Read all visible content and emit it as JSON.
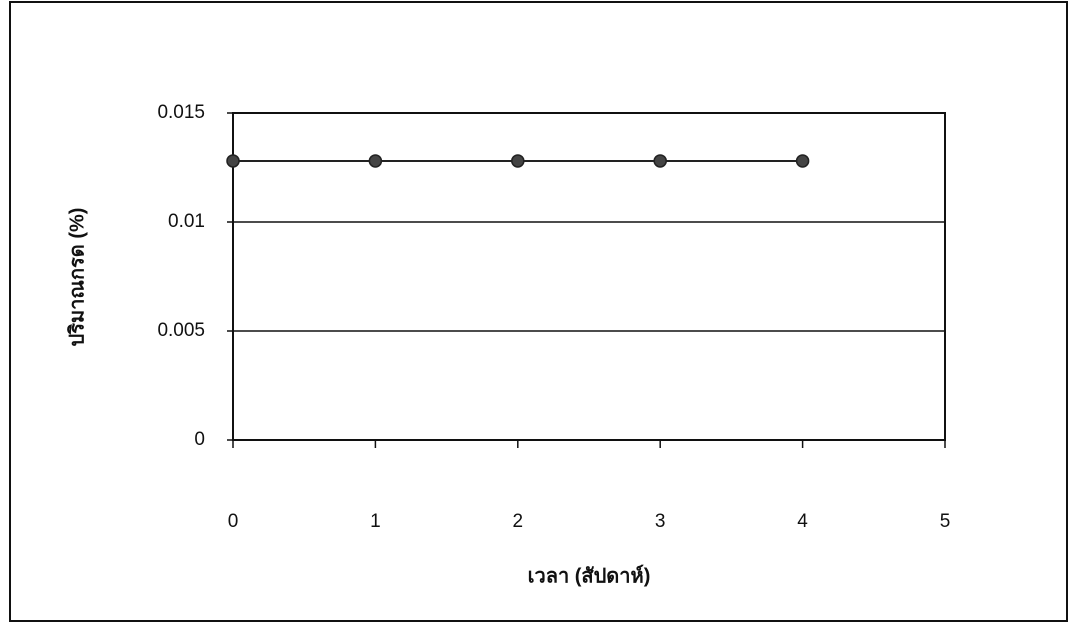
{
  "chart_data": {
    "type": "line",
    "x_label": "เวลา (สัปดาห์)",
    "y_label": "ปริมาณกรด (%)",
    "x": [
      0,
      1,
      2,
      3,
      4
    ],
    "series": [
      {
        "color": "#222222",
        "values": [
          0.0128,
          0.0128,
          0.0128,
          0.0128,
          0.0128
        ]
      }
    ],
    "xlim": [
      0,
      5
    ],
    "xticks": [
      0,
      1,
      2,
      3,
      4,
      5
    ],
    "ylim": [
      0,
      0.015
    ],
    "yticks": [
      0,
      0.005,
      0.01,
      0.015
    ],
    "grid": true
  }
}
